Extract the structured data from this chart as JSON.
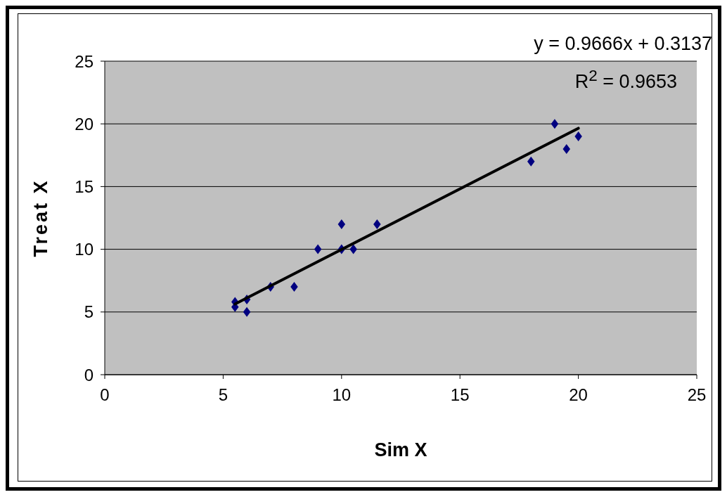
{
  "chart_data": {
    "type": "scatter",
    "xlabel": "Sim X",
    "ylabel": "Treat X",
    "series": [
      {
        "color": "#000080",
        "marker": "diamond",
        "x": [
          5.5,
          5.5,
          6,
          6,
          7,
          8,
          9,
          10,
          10,
          10.5,
          11.5,
          18,
          19,
          19.5,
          20
        ],
        "values": [
          5.8,
          5.4,
          6,
          5,
          7,
          7,
          10,
          10,
          12,
          10,
          12,
          17,
          20,
          18,
          19
        ]
      },
      {
        "type": "line",
        "color": "#000000",
        "marker": "none",
        "x": [
          5.5,
          20
        ],
        "values": [
          5.63,
          19.65
        ]
      }
    ],
    "annotations": [
      "y = 0.9666x + 0.3137",
      "R$^{2}$ = 0.9653"
    ],
    "xlim": [
      0,
      25
    ],
    "xticks": [
      0,
      5,
      10,
      15,
      20,
      25
    ],
    "ylim": [
      0,
      25
    ],
    "yticks": [
      0,
      5,
      10,
      15,
      20,
      25
    ],
    "grid": "y",
    "legend": false
  }
}
